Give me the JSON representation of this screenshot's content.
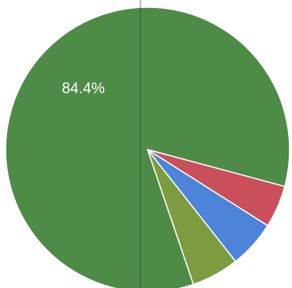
{
  "chart_data": {
    "type": "pie",
    "title": "",
    "slices": [
      {
        "label": "84.4%",
        "value": 84.4,
        "color": "#4e8b47",
        "show_label": true
      },
      {
        "label": "",
        "value": 4.8,
        "color": "#c94f5a",
        "show_label": false
      },
      {
        "label": "",
        "value": 5.4,
        "color": "#4b84d8",
        "show_label": false
      },
      {
        "label": "",
        "value": 5.4,
        "color": "#7d9b3f",
        "show_label": false
      }
    ],
    "start_angle_deg": 0,
    "direction": "clockwise",
    "legend": "none"
  },
  "page": {
    "background": "#ffffff",
    "divider_color": "#2b3e5c"
  }
}
